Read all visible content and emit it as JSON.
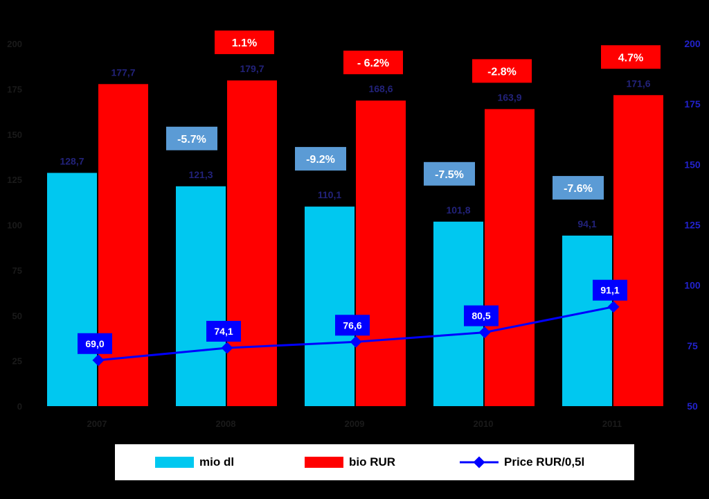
{
  "colors": {
    "volume": "#00c8f0",
    "value": "#ff0000",
    "price": "#0000ff",
    "change_volume_box": "#5b9bd5",
    "change_value_box": "#ff0000"
  },
  "legend": {
    "volume": "mio dl",
    "value": "bio RUR",
    "price": "Price RUR/0,5l"
  },
  "chart_data": {
    "type": "bar",
    "categories": [
      "2007",
      "2008",
      "2009",
      "2010",
      "2011"
    ],
    "series": [
      {
        "name": "mio dl",
        "type": "bar",
        "axis": "left",
        "values": [
          128.7,
          121.3,
          110.1,
          101.8,
          94.1
        ],
        "labels": [
          "128,7",
          "121,3",
          "110,1",
          "101,8",
          "94,1"
        ]
      },
      {
        "name": "bio RUR",
        "type": "bar",
        "axis": "left",
        "values": [
          177.7,
          179.7,
          168.6,
          163.9,
          171.6
        ],
        "labels": [
          "177,7",
          "179,7",
          "168,6",
          "163,9",
          "171,6"
        ]
      },
      {
        "name": "Price RUR/0,5l",
        "type": "line",
        "axis": "right",
        "values": [
          69.0,
          74.1,
          76.6,
          80.5,
          91.1
        ],
        "labels": [
          "69,0",
          "74,1",
          "76,6",
          "80,5",
          "91,1"
        ]
      }
    ],
    "annotations_volume_change": [
      "",
      "-5.7%",
      "-9.2%",
      "-7.5%",
      "-7.6%"
    ],
    "annotations_value_change": [
      "",
      "1.1%",
      "- 6.2%",
      "-2.8%",
      "4.7%"
    ],
    "y_left": {
      "min": 0,
      "max": 200,
      "ticks": [
        0,
        25,
        50,
        75,
        100,
        125,
        150,
        175,
        200
      ]
    },
    "y_right": {
      "min": 50,
      "max": 200,
      "ticks": [
        50,
        75,
        100,
        125,
        150,
        175,
        200
      ]
    },
    "grid": false,
    "legend_position": "bottom"
  }
}
